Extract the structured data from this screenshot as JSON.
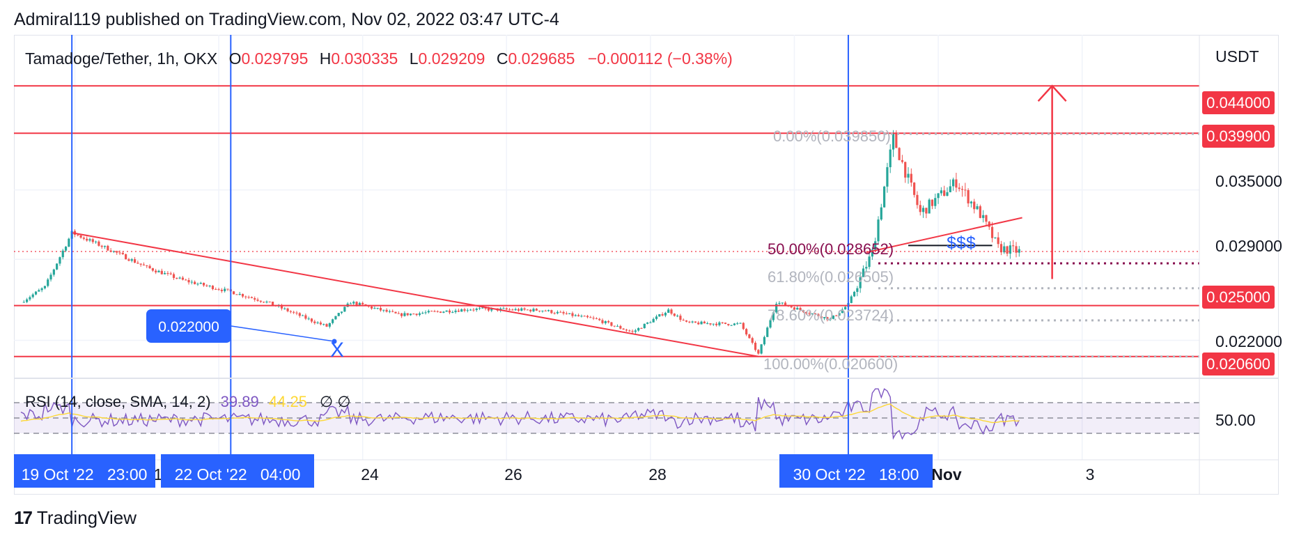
{
  "publisher_line": "Admiral119 published on TradingView.com, Nov 02, 2022 03:47 UTC-4",
  "footer": {
    "logo_mark": "17",
    "brand": "TradingView"
  },
  "colors": {
    "up": "#26a69a",
    "down": "#ef5350",
    "level": "#f23645",
    "marker": "#2962ff",
    "rsi": "#7e57c2",
    "rsi_ma": "#fdd835",
    "fib": "#b2b5be",
    "fib50": "#880e4f"
  },
  "legend": {
    "symbol": "Tamadoge/Tether, 1h, OKX",
    "o_label": "O",
    "o_value": "0.029795",
    "h_label": "H",
    "h_value": "0.030335",
    "l_label": "L",
    "l_value": "0.029209",
    "c_label": "C",
    "c_value": "0.029685",
    "change": "−0.000112 (−0.38%)"
  },
  "price_axis": {
    "unit": "USDT",
    "ticks": [
      "0.035000",
      "0.029000",
      "0.022000"
    ],
    "level_labels": [
      "0.044000",
      "0.039900",
      "0.025000",
      "0.020600"
    ]
  },
  "time_axis": {
    "ticks": [
      {
        "label": "24",
        "bold": false
      },
      {
        "label": "26",
        "bold": false
      },
      {
        "label": "28",
        "bold": false
      },
      {
        "label": "Nov",
        "bold": true
      },
      {
        "label": "3",
        "bold": false
      }
    ],
    "highlighted": [
      "19 Oct '22   23:00",
      "22 Oct '22   04:00",
      "30 Oct '22   18:00"
    ],
    "partial_glyph": "1"
  },
  "annotations": {
    "price_box": "0.022000",
    "x_mark": "X",
    "dollar_text": "$$$",
    "fib_levels": [
      "0.00%(0.039850)",
      "50.00%(0.028652)",
      "61.80%(0.026505)",
      "78.60%(0.023724)",
      "100.00%(0.020600)"
    ]
  },
  "rsi_panel": {
    "title": "RSI (14, close, SMA, 14, 2)",
    "rsi_value": "39.89",
    "ma_value": "44.25",
    "extra_glyphs": "∅  ∅",
    "axis_label": "50.00"
  },
  "chart_data": {
    "type": "candlestick",
    "symbol": "Tamadoge/Tether",
    "interval": "1h",
    "exchange": "OKX",
    "y_unit": "USDT",
    "ylim": [
      0.0195,
      0.046
    ],
    "x_ticks": [
      "24",
      "26",
      "28",
      "Nov",
      "3"
    ],
    "price_path": [
      [
        "2022-10-19 06:00",
        0.0253
      ],
      [
        "2022-10-19 14:00",
        0.0266
      ],
      [
        "2022-10-19 23:00",
        0.0313
      ],
      [
        "2022-10-20 12:00",
        0.0298
      ],
      [
        "2022-10-21 00:00",
        0.0283
      ],
      [
        "2022-10-21 12:00",
        0.0272
      ],
      [
        "2022-10-22 04:00",
        0.0262
      ],
      [
        "2022-10-22 16:00",
        0.0253
      ],
      [
        "2022-10-23 08:00",
        0.0236
      ],
      [
        "2022-10-23 12:00",
        0.0232
      ],
      [
        "2022-10-23 20:00",
        0.0253
      ],
      [
        "2022-10-24 12:00",
        0.0242
      ],
      [
        "2022-10-25 12:00",
        0.0247
      ],
      [
        "2022-10-26 12:00",
        0.0246
      ],
      [
        "2022-10-27 06:00",
        0.0238
      ],
      [
        "2022-10-27 18:00",
        0.0227
      ],
      [
        "2022-10-28 06:00",
        0.0246
      ],
      [
        "2022-10-28 12:00",
        0.0235
      ],
      [
        "2022-10-29 06:00",
        0.0234
      ],
      [
        "2022-10-29 12:00",
        0.0208
      ],
      [
        "2022-10-29 18:00",
        0.0253
      ],
      [
        "2022-10-30 12:00",
        0.0238
      ],
      [
        "2022-10-30 18:00",
        0.0251
      ],
      [
        "2022-10-31 02:00",
        0.0296
      ],
      [
        "2022-10-31 09:00",
        0.0395
      ],
      [
        "2022-10-31 18:00",
        0.033
      ],
      [
        "2022-11-01 06:00",
        0.0357
      ],
      [
        "2022-11-01 14:00",
        0.0329
      ],
      [
        "2022-11-01 20:00",
        0.03
      ],
      [
        "2022-11-02 03:00",
        0.02968
      ]
    ],
    "horizontal_levels": [
      0.044,
      0.0399,
      0.025,
      0.0206
    ],
    "fibonacci": [
      {
        "level": "0.00%",
        "price": 0.03985
      },
      {
        "level": "50.00%",
        "price": 0.028652
      },
      {
        "level": "61.80%",
        "price": 0.026505
      },
      {
        "level": "78.60%",
        "price": 0.023724
      },
      {
        "level": "100.00%",
        "price": 0.0206
      }
    ],
    "trendline": [
      [
        "2022-10-19 23:00",
        0.0313
      ],
      [
        "2022-10-29 12:00",
        0.0206
      ]
    ],
    "marked_price": 0.022,
    "target_arrow": {
      "time": "2022-11-02 14:00",
      "from": 0.0273,
      "to": 0.044
    },
    "rsi": {
      "period": 14,
      "ma_period": 14,
      "last": 39.89,
      "ma_last": 44.25,
      "mid": 50.0,
      "bands": [
        30,
        70
      ]
    }
  }
}
